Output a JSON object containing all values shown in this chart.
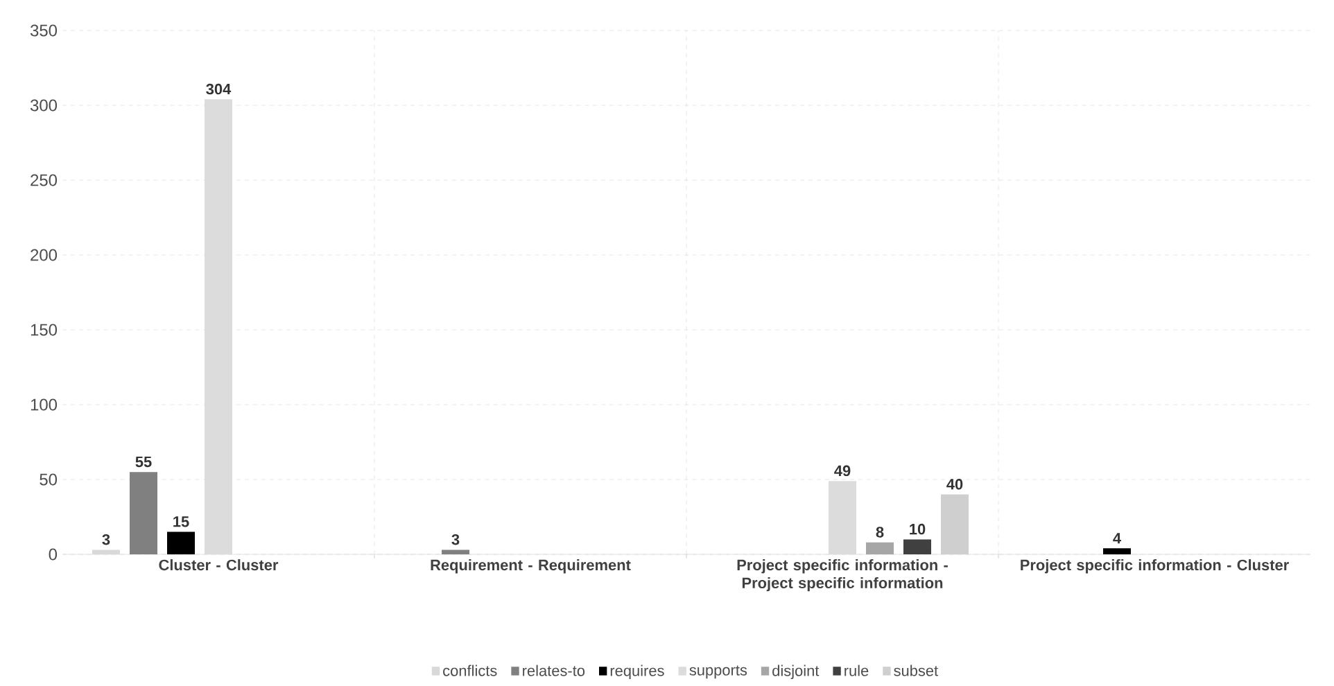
{
  "chart_data": {
    "type": "bar",
    "categories": [
      "Cluster - Cluster",
      "Requirement - Requirement",
      "Project specific information - Project specific information",
      "Project specific information - Cluster"
    ],
    "series": [
      {
        "name": "conflicts",
        "color": "#d9d9d9",
        "values": [
          3,
          null,
          null,
          null
        ]
      },
      {
        "name": "relates-to",
        "color": "#808080",
        "values": [
          55,
          3,
          null,
          null
        ]
      },
      {
        "name": "requires",
        "color": "#000000",
        "values": [
          15,
          null,
          null,
          4
        ]
      },
      {
        "name": "supports",
        "color": "#dcdcdc",
        "values": [
          304,
          null,
          49,
          null
        ]
      },
      {
        "name": "disjoint",
        "color": "#a6a6a6",
        "values": [
          null,
          null,
          8,
          null
        ]
      },
      {
        "name": "rule",
        "color": "#404040",
        "values": [
          null,
          null,
          10,
          null
        ]
      },
      {
        "name": "subset",
        "color": "#cfcfcf",
        "values": [
          null,
          null,
          40,
          null
        ]
      }
    ],
    "ylim": [
      0,
      350
    ],
    "yticks": [
      0,
      50,
      100,
      150,
      200,
      250,
      300,
      350
    ],
    "grid": true,
    "legend": "bottom",
    "data_labels": true
  }
}
